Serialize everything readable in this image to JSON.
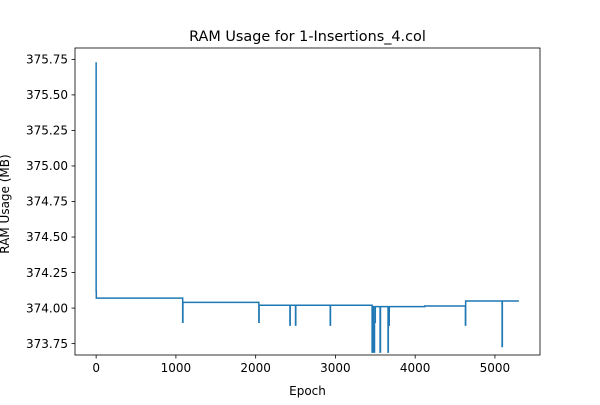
{
  "chart_data": {
    "type": "line",
    "title": "RAM Usage for 1-Insertions_4.col",
    "xlabel": "Epoch",
    "ylabel": "RAM Usage (MB)",
    "xlim": [
      -265,
      5565
    ],
    "ylim": [
      373.67,
      375.83
    ],
    "xticks": [
      0,
      1000,
      2000,
      3000,
      4000,
      5000
    ],
    "xtick_labels": [
      "0",
      "1000",
      "2000",
      "3000",
      "4000",
      "5000"
    ],
    "yticks": [
      373.75,
      374.0,
      374.25,
      374.5,
      374.75,
      375.0,
      375.25,
      375.5,
      375.75
    ],
    "ytick_labels": [
      "373.75",
      "374.00",
      "374.25",
      "374.50",
      "374.75",
      "375.00",
      "375.25",
      "375.50",
      "375.75"
    ],
    "grid": false,
    "legend": "none",
    "colors": {
      "line": "#1f77b4"
    },
    "series": [
      {
        "x": [
          0,
          0,
          2,
          2,
          10,
          10,
          1085,
          1085,
          1088,
          1088,
          1092,
          1092,
          2040,
          2040,
          2043,
          2043,
          2048,
          2048,
          2430,
          2430,
          2433,
          2433,
          2500,
          2500,
          2503,
          2503,
          2935,
          2935,
          2938,
          2938,
          3460,
          3460,
          3470,
          3470,
          3480,
          3480,
          3490,
          3490,
          3500,
          3500,
          3510,
          3510,
          3560,
          3560,
          3565,
          3565,
          3660,
          3660,
          3663,
          3663,
          3670,
          3670,
          3675,
          3675,
          3680,
          3680,
          4120,
          4120,
          4630,
          4630,
          4633,
          4633,
          4638,
          4638,
          5090,
          5090,
          5093,
          5093,
          5300
        ],
        "y": [
          375.73,
          374.12,
          374.12,
          374.07,
          374.07,
          374.07,
          374.07,
          373.9,
          373.9,
          374.04,
          374.04,
          374.04,
          374.04,
          373.9,
          373.9,
          374.02,
          374.02,
          374.02,
          374.02,
          373.88,
          373.88,
          374.02,
          374.02,
          373.88,
          373.88,
          374.02,
          374.02,
          373.88,
          373.88,
          374.02,
          374.02,
          373.69,
          373.69,
          374.01,
          374.01,
          373.69,
          373.69,
          373.9,
          373.9,
          374.01,
          374.01,
          374.01,
          374.01,
          373.69,
          373.69,
          374.01,
          374.01,
          373.69,
          373.69,
          374.0,
          374.0,
          373.88,
          373.88,
          374.01,
          374.01,
          374.01,
          374.01,
          374.015,
          374.015,
          373.88,
          373.88,
          374.05,
          374.05,
          374.05,
          374.05,
          373.73,
          373.73,
          374.05,
          374.05
        ]
      }
    ]
  }
}
